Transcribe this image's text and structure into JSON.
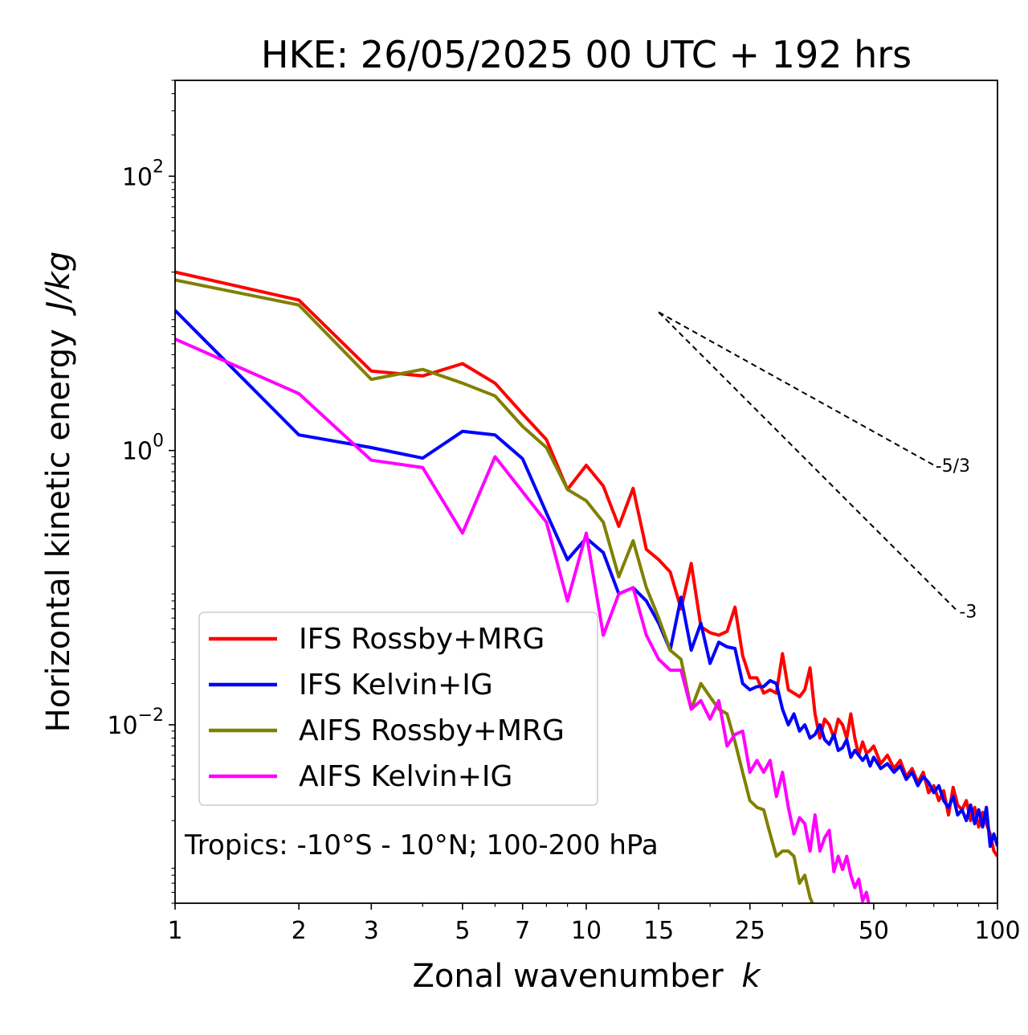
{
  "chart_data": {
    "type": "line",
    "title": "HKE: 26/05/2025 00 UTC + 192 hrs",
    "xlabel": "Zonal wavenumber",
    "xlabel_var": "k",
    "ylabel": "Horizontal kinetic energy",
    "ylabel_unit": "J/kg",
    "xscale": "log",
    "yscale": "log",
    "xlim": [
      1,
      100
    ],
    "ylim": [
      0.0005,
      500
    ],
    "x_ticks": [
      1,
      2,
      3,
      5,
      7,
      10,
      15,
      25,
      50,
      100
    ],
    "x_tick_labels": [
      "1",
      "2",
      "3",
      "5",
      "7",
      "10",
      "15",
      "25",
      "50",
      "100"
    ],
    "y_ticks": [
      0.01,
      1,
      100
    ],
    "y_tick_labels": [
      {
        "base": "10",
        "exp": "−2"
      },
      {
        "base": "10",
        "exp": "0"
      },
      {
        "base": "10",
        "exp": "2"
      }
    ],
    "annotation": "Tropics: -10°S - 10°N; 100-200 hPa",
    "legend_position": "lower-left",
    "reference_slopes": [
      {
        "label": "-5/3",
        "slope": -1.6667,
        "x": [
          15,
          70
        ],
        "y0": 10.2
      },
      {
        "label": "-3",
        "slope": -3,
        "x": [
          15,
          80
        ],
        "y0": 10.2
      }
    ],
    "series": [
      {
        "name": "IFS Rossby+MRG",
        "color": "#ff0000",
        "points": [
          [
            1,
            20
          ],
          [
            2,
            12.5
          ],
          [
            3,
            3.8
          ],
          [
            4,
            3.5
          ],
          [
            5,
            4.3
          ],
          [
            6,
            3.1
          ],
          [
            7,
            1.85
          ],
          [
            8,
            1.2
          ],
          [
            9,
            0.52
          ],
          [
            10,
            0.78
          ],
          [
            11,
            0.55
          ],
          [
            12,
            0.28
          ],
          [
            13,
            0.53
          ],
          [
            14,
            0.19
          ],
          [
            15,
            0.16
          ],
          [
            16,
            0.13
          ],
          [
            17,
            0.07
          ],
          [
            18,
            0.15
          ],
          [
            19,
            0.052
          ],
          [
            20,
            0.047
          ],
          [
            21,
            0.045
          ],
          [
            22,
            0.048
          ],
          [
            23,
            0.072
          ],
          [
            24,
            0.032
          ],
          [
            25,
            0.022
          ],
          [
            26,
            0.022
          ],
          [
            27,
            0.017
          ],
          [
            28,
            0.018
          ],
          [
            29,
            0.017
          ],
          [
            30,
            0.033
          ],
          [
            31,
            0.018
          ],
          [
            32,
            0.017
          ],
          [
            33,
            0.016
          ],
          [
            34,
            0.018
          ],
          [
            35,
            0.026
          ],
          [
            36,
            0.012
          ],
          [
            37,
            0.008
          ],
          [
            38,
            0.011
          ],
          [
            39,
            0.01
          ],
          [
            40,
            0.008
          ],
          [
            41,
            0.011
          ],
          [
            42,
            0.01
          ],
          [
            43,
            0.008
          ],
          [
            44,
            0.012
          ],
          [
            45,
            0.008
          ],
          [
            46,
            0.006
          ],
          [
            47,
            0.0075
          ],
          [
            48,
            0.0062
          ],
          [
            49,
            0.0065
          ],
          [
            50,
            0.007
          ],
          [
            52,
            0.0052
          ],
          [
            54,
            0.006
          ],
          [
            56,
            0.0048
          ],
          [
            58,
            0.0055
          ],
          [
            60,
            0.0042
          ],
          [
            62,
            0.0048
          ],
          [
            64,
            0.0038
          ],
          [
            66,
            0.0045
          ],
          [
            68,
            0.0032
          ],
          [
            70,
            0.0036
          ],
          [
            72,
            0.0028
          ],
          [
            74,
            0.0033
          ],
          [
            76,
            0.0022
          ],
          [
            78,
            0.0035
          ],
          [
            80,
            0.0026
          ],
          [
            82,
            0.0024
          ],
          [
            84,
            0.0028
          ],
          [
            86,
            0.002
          ],
          [
            88,
            0.0025
          ],
          [
            90,
            0.0018
          ],
          [
            92,
            0.0023
          ],
          [
            94,
            0.0019
          ],
          [
            96,
            0.0016
          ],
          [
            98,
            0.0012
          ],
          [
            100,
            0.0011
          ]
        ]
      },
      {
        "name": "IFS Kelvin+IG",
        "color": "#0000ff",
        "points": [
          [
            1,
            10.5
          ],
          [
            2,
            1.3
          ],
          [
            3,
            1.05
          ],
          [
            4,
            0.88
          ],
          [
            5,
            1.38
          ],
          [
            6,
            1.3
          ],
          [
            7,
            0.87
          ],
          [
            8,
            0.35
          ],
          [
            9,
            0.16
          ],
          [
            10,
            0.23
          ],
          [
            11,
            0.18
          ],
          [
            12,
            0.09
          ],
          [
            13,
            0.1
          ],
          [
            14,
            0.08
          ],
          [
            15,
            0.055
          ],
          [
            16,
            0.035
          ],
          [
            17,
            0.085
          ],
          [
            18,
            0.035
          ],
          [
            19,
            0.055
          ],
          [
            20,
            0.028
          ],
          [
            21,
            0.04
          ],
          [
            22,
            0.037
          ],
          [
            23,
            0.036
          ],
          [
            24,
            0.02
          ],
          [
            25,
            0.018
          ],
          [
            26,
            0.019
          ],
          [
            27,
            0.019
          ],
          [
            28,
            0.021
          ],
          [
            29,
            0.02
          ],
          [
            30,
            0.013
          ],
          [
            31,
            0.01
          ],
          [
            32,
            0.012
          ],
          [
            33,
            0.009
          ],
          [
            34,
            0.01
          ],
          [
            35,
            0.008
          ],
          [
            36,
            0.0085
          ],
          [
            37,
            0.01
          ],
          [
            38,
            0.0078
          ],
          [
            39,
            0.0072
          ],
          [
            40,
            0.0085
          ],
          [
            41,
            0.0065
          ],
          [
            42,
            0.0068
          ],
          [
            43,
            0.0078
          ],
          [
            44,
            0.0058
          ],
          [
            45,
            0.0065
          ],
          [
            46,
            0.006
          ],
          [
            47,
            0.0055
          ],
          [
            48,
            0.006
          ],
          [
            49,
            0.005
          ],
          [
            50,
            0.0058
          ],
          [
            52,
            0.0048
          ],
          [
            54,
            0.0052
          ],
          [
            56,
            0.0045
          ],
          [
            58,
            0.005
          ],
          [
            60,
            0.004
          ],
          [
            62,
            0.0045
          ],
          [
            64,
            0.0036
          ],
          [
            66,
            0.0042
          ],
          [
            68,
            0.0038
          ],
          [
            70,
            0.0032
          ],
          [
            72,
            0.0036
          ],
          [
            74,
            0.0028
          ],
          [
            76,
            0.0025
          ],
          [
            78,
            0.003
          ],
          [
            80,
            0.0022
          ],
          [
            82,
            0.0024
          ],
          [
            84,
            0.002
          ],
          [
            86,
            0.0026
          ],
          [
            88,
            0.0019
          ],
          [
            90,
            0.0024
          ],
          [
            92,
            0.0018
          ],
          [
            94,
            0.0025
          ],
          [
            96,
            0.0013
          ],
          [
            98,
            0.0016
          ],
          [
            100,
            0.0013
          ]
        ]
      },
      {
        "name": "AIFS Rossby+MRG",
        "color": "#808000",
        "points": [
          [
            1,
            17.5
          ],
          [
            2,
            11.5
          ],
          [
            3,
            3.3
          ],
          [
            4,
            3.9
          ],
          [
            5,
            3.1
          ],
          [
            6,
            2.5
          ],
          [
            7,
            1.5
          ],
          [
            8,
            1.05
          ],
          [
            9,
            0.52
          ],
          [
            10,
            0.43
          ],
          [
            11,
            0.3
          ],
          [
            12,
            0.12
          ],
          [
            13,
            0.22
          ],
          [
            14,
            0.1
          ],
          [
            15,
            0.06
          ],
          [
            16,
            0.035
          ],
          [
            17,
            0.03
          ],
          [
            18,
            0.013
          ],
          [
            19,
            0.02
          ],
          [
            20,
            0.016
          ],
          [
            21,
            0.013
          ],
          [
            22,
            0.012
          ],
          [
            23,
            0.0075
          ],
          [
            24,
            0.0045
          ],
          [
            25,
            0.0028
          ],
          [
            26,
            0.0025
          ],
          [
            27,
            0.0024
          ],
          [
            28,
            0.0016
          ],
          [
            29,
            0.0011
          ],
          [
            30,
            0.0012
          ],
          [
            31,
            0.0012
          ],
          [
            32,
            0.0011
          ],
          [
            33,
            0.0007
          ],
          [
            34,
            0.0008
          ],
          [
            35,
            0.00055
          ],
          [
            36,
            0.00045
          ],
          [
            37,
            0.00042
          ],
          [
            38,
            0.0004
          ],
          [
            39,
            0.00033
          ],
          [
            40,
            0.00032
          ],
          [
            41,
            0.0003
          ]
        ]
      },
      {
        "name": "AIFS Kelvin+IG",
        "color": "#ff00ff",
        "points": [
          [
            1,
            6.5
          ],
          [
            2,
            2.6
          ],
          [
            3,
            0.85
          ],
          [
            4,
            0.75
          ],
          [
            5,
            0.25
          ],
          [
            6,
            0.9
          ],
          [
            7,
            0.5
          ],
          [
            8,
            0.3
          ],
          [
            9,
            0.08
          ],
          [
            10,
            0.25
          ],
          [
            11,
            0.045
          ],
          [
            12,
            0.09
          ],
          [
            13,
            0.1
          ],
          [
            14,
            0.045
          ],
          [
            15,
            0.03
          ],
          [
            16,
            0.025
          ],
          [
            17,
            0.025
          ],
          [
            18,
            0.013
          ],
          [
            19,
            0.015
          ],
          [
            20,
            0.011
          ],
          [
            21,
            0.015
          ],
          [
            22,
            0.007
          ],
          [
            23,
            0.0085
          ],
          [
            24,
            0.009
          ],
          [
            25,
            0.0045
          ],
          [
            26,
            0.0055
          ],
          [
            27,
            0.0045
          ],
          [
            28,
            0.0055
          ],
          [
            29,
            0.003
          ],
          [
            30,
            0.0045
          ],
          [
            31,
            0.0025
          ],
          [
            32,
            0.0016
          ],
          [
            33,
            0.0021
          ],
          [
            34,
            0.0019
          ],
          [
            35,
            0.0012
          ],
          [
            36,
            0.0022
          ],
          [
            37,
            0.0012
          ],
          [
            38,
            0.0015
          ],
          [
            39,
            0.0017
          ],
          [
            40,
            0.00085
          ],
          [
            41,
            0.0011
          ],
          [
            42,
            0.00088
          ],
          [
            43,
            0.0011
          ],
          [
            44,
            0.0008
          ],
          [
            45,
            0.00065
          ],
          [
            46,
            0.00075
          ],
          [
            47,
            0.00052
          ],
          [
            48,
            0.0006
          ],
          [
            49,
            0.00045
          ],
          [
            50,
            0.00042
          ],
          [
            51,
            0.0004
          ]
        ]
      }
    ]
  }
}
